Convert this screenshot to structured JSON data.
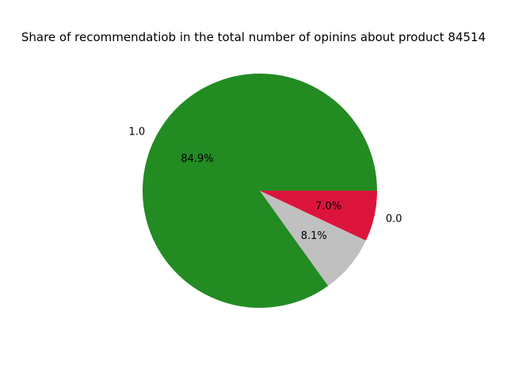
{
  "chart_data": {
    "type": "pie",
    "title": "Share of recommendatiob in the total number of opinins about product 84514",
    "slices": [
      {
        "label": "1.0",
        "value": 84.9,
        "pct_label": "84.9%",
        "color": "#228b22"
      },
      {
        "label": "",
        "value": 8.1,
        "pct_label": "8.1%",
        "color": "#c0c0c0"
      },
      {
        "label": "0.0",
        "value": 7.0,
        "pct_label": "7.0%",
        "color": "#dc143c"
      }
    ],
    "start_angle_deg": 0,
    "direction": "counterclockwise"
  }
}
